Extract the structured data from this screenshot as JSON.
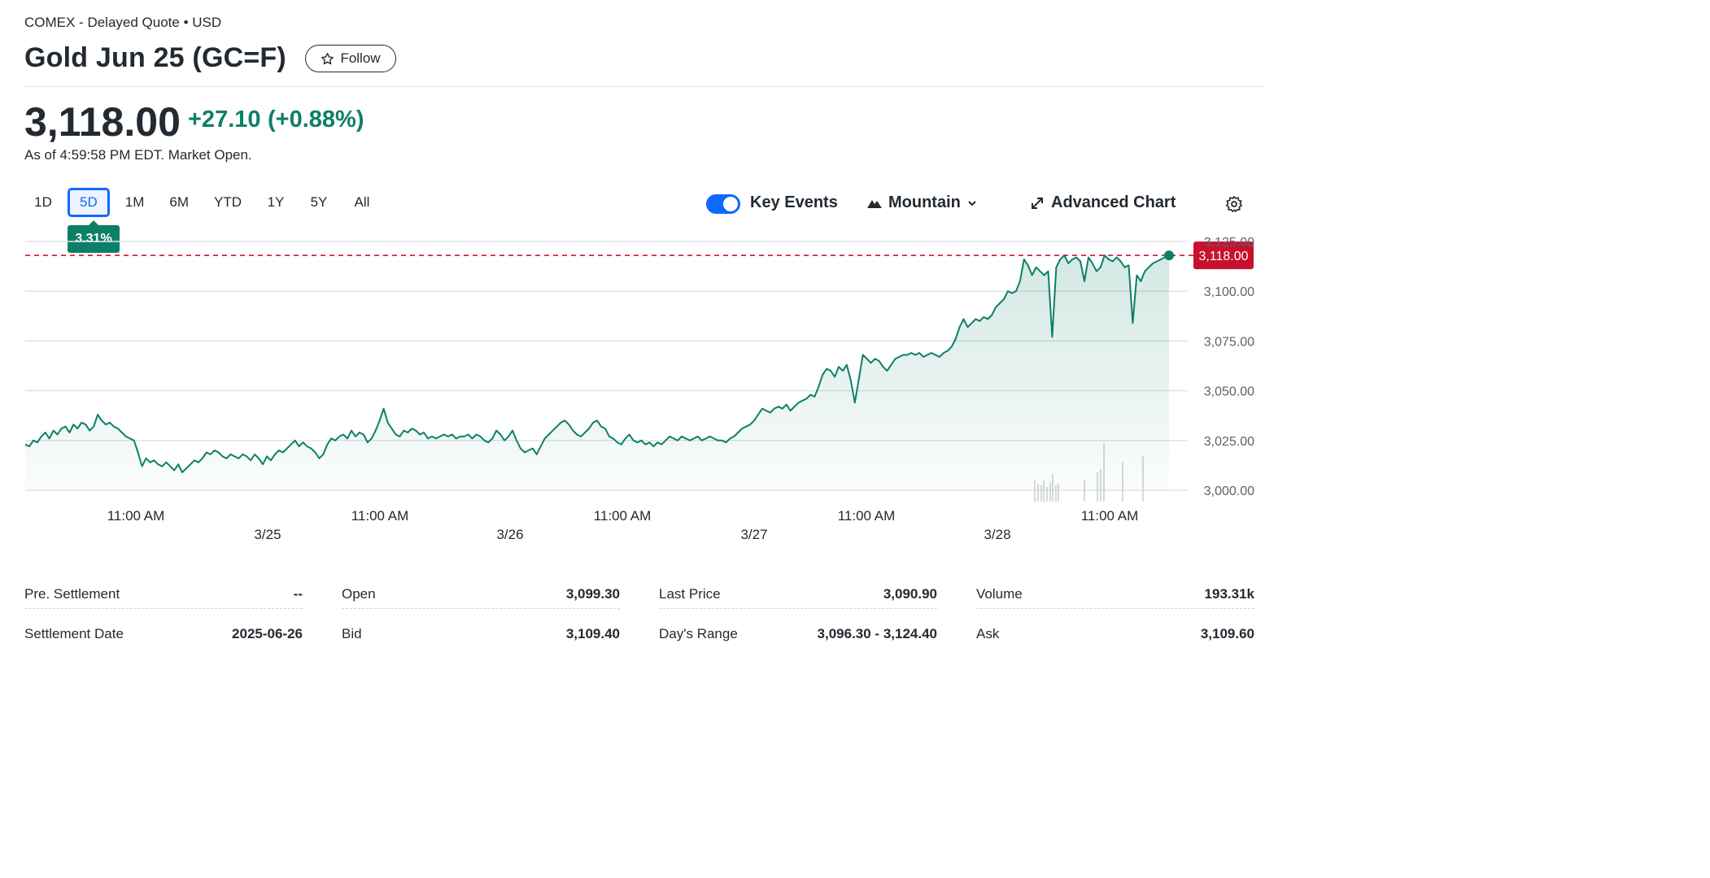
{
  "header": {
    "exchange": "COMEX - Delayed Quote • USD",
    "title": "Gold Jun 25 (GC=F)",
    "follow_label": "Follow"
  },
  "quote": {
    "price": "3,118.00",
    "change": "+27.10",
    "change_pct": "(+0.88%)",
    "as_of": "As of 4:59:58 PM EDT. Market Open.",
    "change_color": "#0c8066"
  },
  "range_tabs": [
    {
      "label": "1D"
    },
    {
      "label": "5D",
      "active": true
    },
    {
      "label": "1M"
    },
    {
      "label": "6M"
    },
    {
      "label": "YTD"
    },
    {
      "label": "1Y"
    },
    {
      "label": "5Y"
    },
    {
      "label": "All"
    }
  ],
  "range_change": "3.31%",
  "controls": {
    "key_events": "Key Events",
    "key_events_on": true,
    "chart_style": "Mountain",
    "advanced_chart": "Advanced Chart",
    "icons": [
      "star-icon",
      "mountain-icon",
      "chevron-down-icon",
      "expand-icon",
      "gear-icon"
    ]
  },
  "chart_data": {
    "type": "area",
    "y_ticks": [
      "3,125.00",
      "3,100.00",
      "3,075.00",
      "3,050.00",
      "3,025.00",
      "3,000.00"
    ],
    "ylim": [
      3000,
      3125
    ],
    "x_time_labels": [
      "11:00 AM",
      "11:00 AM",
      "11:00 AM",
      "11:00 AM",
      "11:00 AM"
    ],
    "x_date_labels": [
      "3/25",
      "3/26",
      "3/27",
      "3/28"
    ],
    "current_price_label": "3,118.00",
    "current_price": 3118.0,
    "line_color": "#0c8066",
    "reference_line_color": "#d0021b",
    "series": [
      {
        "values": [
          3023,
          3022,
          3025,
          3024,
          3027,
          3029,
          3026,
          3030,
          3028,
          3031,
          3032,
          3029,
          3033,
          3031,
          3034,
          3033,
          3030,
          3032,
          3038,
          3035,
          3033,
          3034,
          3032,
          3031,
          3029,
          3027,
          3026,
          3025,
          3019,
          3012,
          3016,
          3014,
          3015,
          3013,
          3012,
          3014,
          3012,
          3010,
          3013,
          3009,
          3011,
          3013,
          3015,
          3014,
          3016,
          3019,
          3018,
          3020,
          3019,
          3017,
          3016,
          3018,
          3017,
          3016,
          3018,
          3017,
          3015,
          3018,
          3016,
          3013,
          3017,
          3015,
          3018,
          3020,
          3019,
          3021,
          3023,
          3025,
          3022,
          3024,
          3022,
          3021,
          3019,
          3016,
          3018,
          3023,
          3026,
          3025,
          3027,
          3028,
          3026,
          3030,
          3027,
          3029,
          3028,
          3024,
          3026,
          3030,
          3035,
          3041,
          3034,
          3031,
          3028,
          3027,
          3030,
          3029,
          3031,
          3030,
          3028,
          3029,
          3026,
          3027,
          3026,
          3027,
          3028,
          3027,
          3028,
          3026,
          3027,
          3027,
          3028,
          3026,
          3028,
          3027,
          3025,
          3024,
          3026,
          3030,
          3028,
          3025,
          3027,
          3030,
          3025,
          3021,
          3019,
          3020,
          3021,
          3018,
          3022,
          3026,
          3028,
          3030,
          3032,
          3034,
          3035,
          3033,
          3030,
          3028,
          3027,
          3029,
          3031,
          3034,
          3035,
          3032,
          3031,
          3027,
          3026,
          3024,
          3023,
          3026,
          3028,
          3025,
          3024,
          3025,
          3023,
          3024,
          3022,
          3024,
          3023,
          3025,
          3027,
          3026,
          3025,
          3027,
          3026,
          3025,
          3026,
          3027,
          3025,
          3026,
          3027,
          3026,
          3025,
          3025,
          3024,
          3026,
          3027,
          3029,
          3031,
          3032,
          3033,
          3035,
          3038,
          3041,
          3040,
          3039,
          3041,
          3042,
          3041,
          3043,
          3040,
          3042,
          3044,
          3045,
          3046,
          3048,
          3047,
          3052,
          3058,
          3061,
          3060,
          3057,
          3062,
          3060,
          3063,
          3055,
          3044,
          3056,
          3068,
          3066,
          3064,
          3066,
          3065,
          3062,
          3060,
          3063,
          3066,
          3067,
          3068,
          3068,
          3069,
          3068,
          3069,
          3067,
          3068,
          3069,
          3068,
          3067,
          3069,
          3070,
          3072,
          3076,
          3082,
          3086,
          3082,
          3084,
          3086,
          3085,
          3087,
          3086,
          3088,
          3092,
          3094,
          3096,
          3100,
          3099,
          3100,
          3105,
          3116,
          3113,
          3108,
          3112,
          3110,
          3108,
          3110,
          3077,
          3112,
          3116,
          3118,
          3114,
          3116,
          3117,
          3115,
          3105,
          3117,
          3114,
          3110,
          3112,
          3118,
          3116,
          3115,
          3117,
          3115,
          3112,
          3113,
          3084,
          3108,
          3105,
          3110,
          3112,
          3114,
          3115,
          3116,
          3117,
          3118
        ]
      }
    ]
  },
  "stats": [
    {
      "label": "Pre. Settlement",
      "value": "--",
      "label2": "Settlement Date",
      "value2": "2025-06-26"
    },
    {
      "label": "Open",
      "value": "3,099.30",
      "label2": "Bid",
      "value2": "3,109.40"
    },
    {
      "label": "Last Price",
      "value": "3,090.90",
      "label2": "Day's Range",
      "value2": "3,096.30 - 3,124.40"
    },
    {
      "label": "Volume",
      "value": "193.31k",
      "label2": "Ask",
      "value2": "3,109.60"
    }
  ]
}
